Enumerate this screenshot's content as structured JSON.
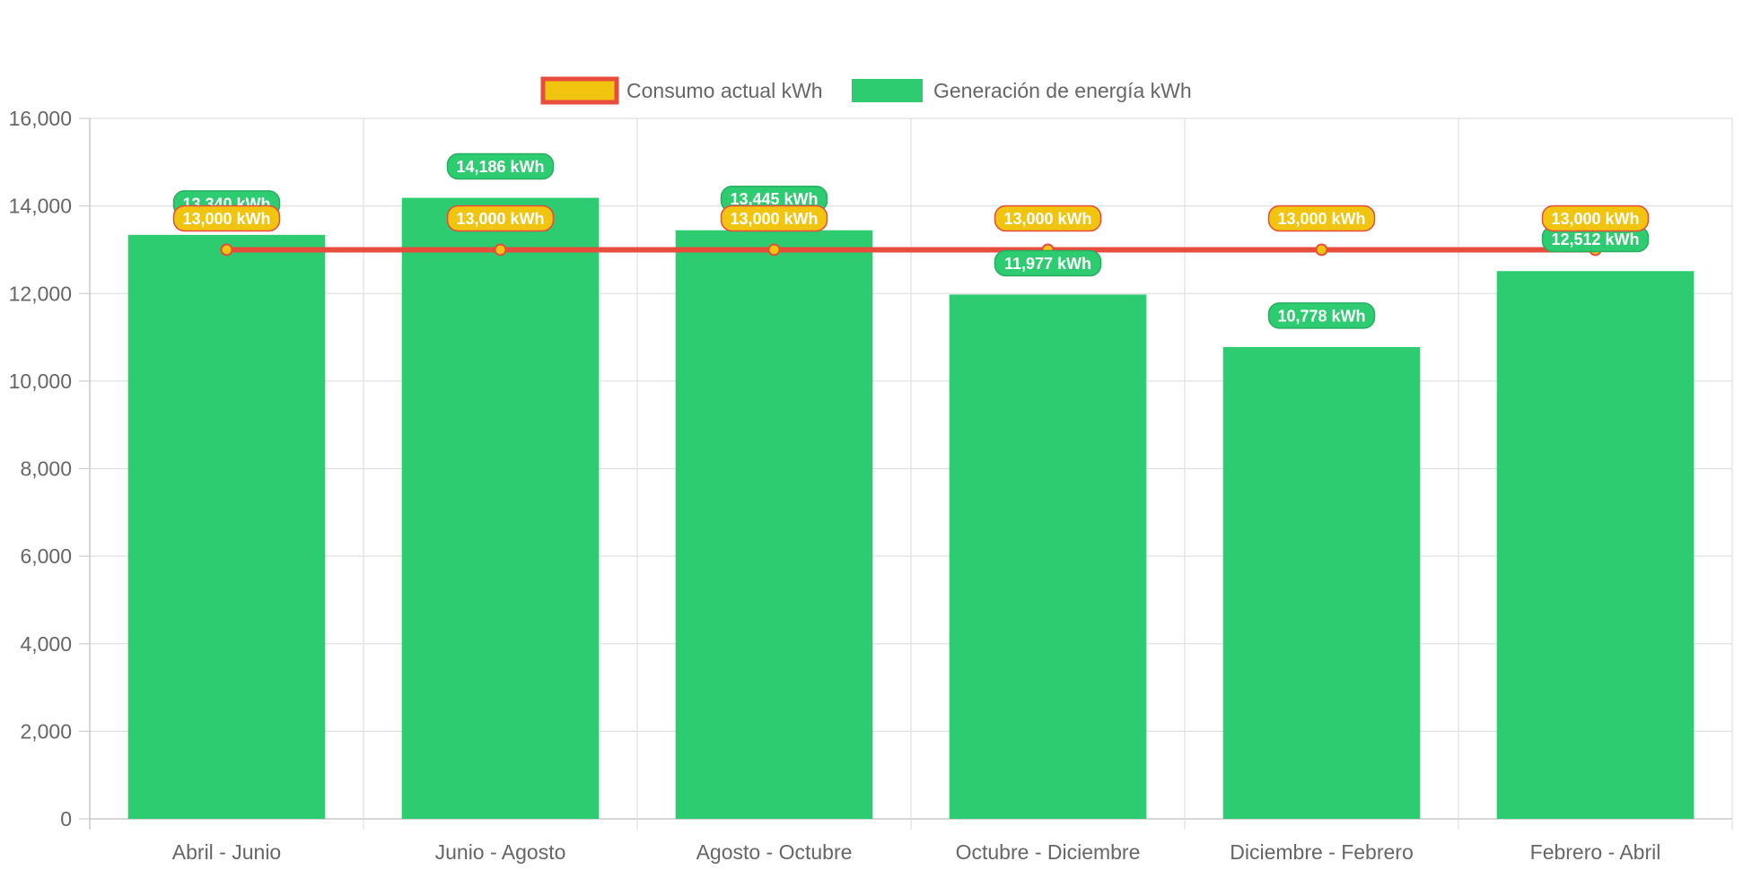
{
  "chart_data": {
    "type": "bar",
    "categories": [
      "Abril - Junio",
      "Junio - Agosto",
      "Agosto - Octubre",
      "Octubre - Diciembre",
      "Diciembre - Febrero",
      "Febrero - Abril"
    ],
    "series": [
      {
        "name": "Consumo actual kWh",
        "type": "line",
        "values": [
          13000,
          13000,
          13000,
          13000,
          13000,
          13000
        ],
        "labels": [
          "13,000 kWh",
          "13,000 kWh",
          "13,000 kWh",
          "13,000 kWh",
          "13,000 kWh",
          "13,000 kWh"
        ],
        "color": "#e74c3c",
        "fill_color": "#f1c40f"
      },
      {
        "name": "Generación de energía kWh",
        "type": "bar",
        "values": [
          13340,
          14186,
          13445,
          11977,
          10778,
          12512
        ],
        "labels": [
          "13,340 kWh",
          "14,186 kWh",
          "13,445 kWh",
          "11,977 kWh",
          "10,778 kWh",
          "12,512 kWh"
        ],
        "color": "#2ecc71"
      }
    ],
    "y_ticks": [
      "0",
      "2,000",
      "4,000",
      "6,000",
      "8,000",
      "10,000",
      "12,000",
      "14,000",
      "16,000"
    ],
    "ylim": [
      0,
      16000
    ],
    "grid": true,
    "legend_position": "top",
    "title": "",
    "xlabel": "",
    "ylabel": ""
  }
}
